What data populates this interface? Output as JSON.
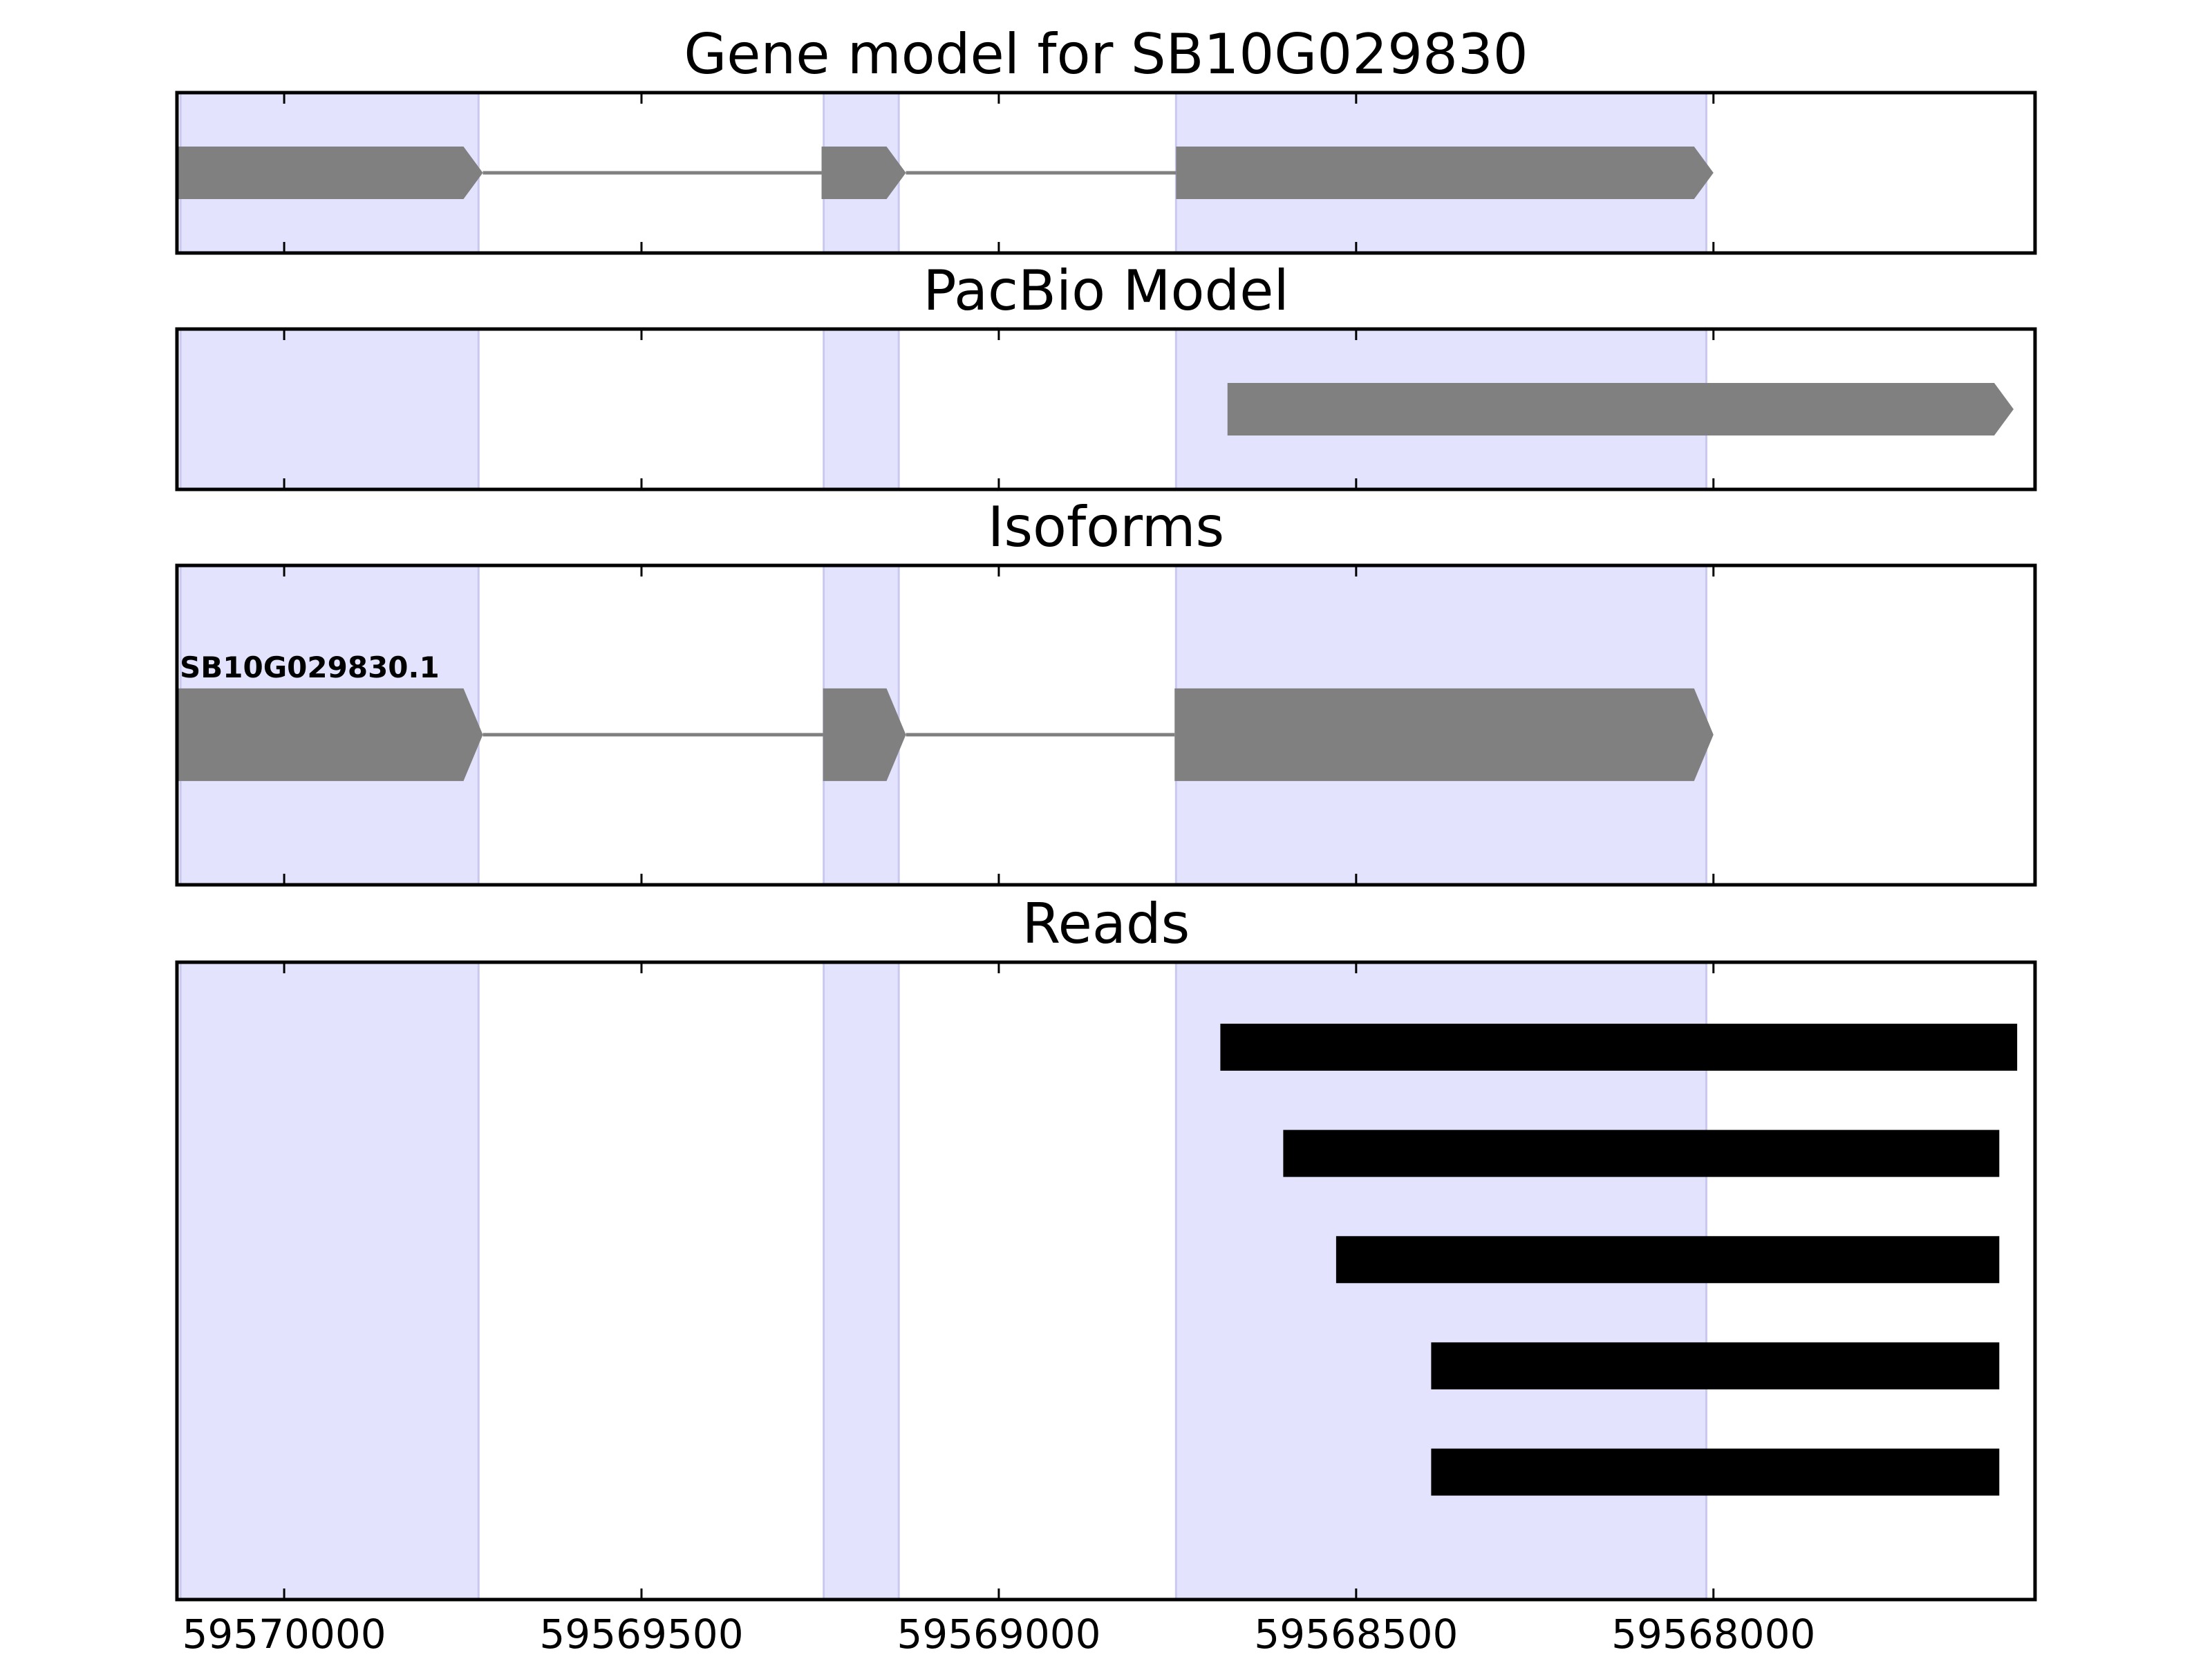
{
  "chart_data": {
    "type": "gene-track",
    "x_axis": {
      "range": [
        59570150,
        59567550
      ],
      "ticks": [
        59570000,
        59569500,
        59569000,
        59568500,
        59568000
      ],
      "tick_labels": [
        "59570000",
        "59569500",
        "59569000",
        "59568500",
        "59568000"
      ]
    },
    "colors": {
      "exon": "#808080",
      "intron": "#808080",
      "read": "#000000",
      "exon_highlight": "#e3e3fd"
    },
    "exon_highlights": [
      [
        59570145,
        59569728
      ],
      [
        59569245,
        59569140
      ],
      [
        59568752,
        59568010
      ]
    ],
    "panels": [
      {
        "title": "Gene model for SB10G029830",
        "features": [
          {
            "kind": "exons",
            "exons": [
              [
                59570150,
                59569722
              ],
              [
                59569248,
                59569130
              ],
              [
                59568752,
                59568000
              ]
            ]
          }
        ]
      },
      {
        "title": "PacBio Model",
        "features": [
          {
            "kind": "exons",
            "exons": [
              [
                59568680,
                59567580
              ]
            ]
          }
        ]
      },
      {
        "title": "Isoforms",
        "features": [
          {
            "kind": "exons",
            "label": "SB10G029830.1",
            "exons": [
              [
                59570150,
                59569722
              ],
              [
                59569246,
                59569130
              ],
              [
                59568754,
                59568000
              ]
            ]
          }
        ]
      },
      {
        "title": "Reads",
        "features": [
          {
            "kind": "read",
            "range": [
              59568690,
              59567575
            ]
          },
          {
            "kind": "read",
            "range": [
              59568602,
              59567600
            ]
          },
          {
            "kind": "read",
            "range": [
              59568528,
              59567600
            ]
          },
          {
            "kind": "read",
            "range": [
              59568395,
              59567600
            ]
          },
          {
            "kind": "read",
            "range": [
              59568395,
              59567600
            ]
          }
        ]
      }
    ]
  }
}
